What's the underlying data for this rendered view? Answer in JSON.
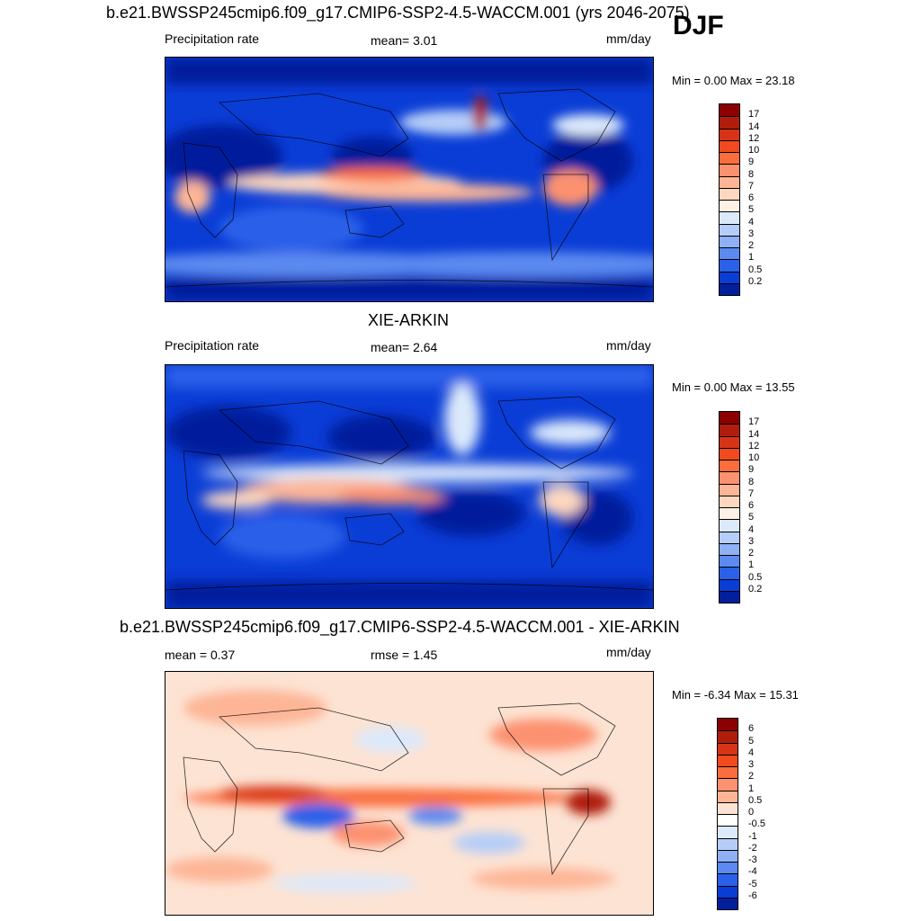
{
  "season": "DJF",
  "panels": [
    {
      "title": "b.e21.BWSSP245cmip6.f09_g17.CMIP6-SSP2-4.5-WACCM.001 (yrs 2046-2075)",
      "left_label": "Precipitation rate",
      "center_label": "mean=   3.01",
      "units": "mm/day",
      "minmax": "Min =   0.00 Max =  23.18",
      "colorbar": {
        "labels": [
          "17",
          "14",
          "12",
          "10",
          "9",
          "8",
          "7",
          "6",
          "5",
          "4",
          "3",
          "2",
          "1",
          "0.5",
          "0.2"
        ],
        "colors": [
          "#8b0000",
          "#b01e0b",
          "#d73417",
          "#f04a1e",
          "#fa6d3c",
          "#fc9170",
          "#fdb596",
          "#fdd7c0",
          "#fef0e6",
          "#dce9fb",
          "#b5cdf8",
          "#8fb0f5",
          "#5b8af0",
          "#2b61e9",
          "#0a3dd6",
          "#021f9c"
        ]
      }
    },
    {
      "title": "XIE-ARKIN",
      "left_label": "Precipitation rate",
      "center_label": "mean=   2.64",
      "units": "mm/day",
      "minmax": "Min =   0.00 Max =  13.55",
      "colorbar": {
        "labels": [
          "17",
          "14",
          "12",
          "10",
          "9",
          "8",
          "7",
          "6",
          "5",
          "4",
          "3",
          "2",
          "1",
          "0.5",
          "0.2"
        ],
        "colors": [
          "#8b0000",
          "#b01e0b",
          "#d73417",
          "#f04a1e",
          "#fa6d3c",
          "#fc9170",
          "#fdb596",
          "#fdd7c0",
          "#fef0e6",
          "#dce9fb",
          "#b5cdf8",
          "#8fb0f5",
          "#5b8af0",
          "#2b61e9",
          "#0a3dd6",
          "#021f9c"
        ]
      }
    },
    {
      "title": "b.e21.BWSSP245cmip6.f09_g17.CMIP6-SSP2-4.5-WACCM.001 - XIE-ARKIN",
      "left_label": "mean =   0.37",
      "center_label": "rmse =   1.45",
      "units": "mm/day",
      "minmax": "Min =  -6.34 Max =  15.31",
      "colorbar": {
        "labels": [
          "6",
          "5",
          "4",
          "3",
          "2",
          "1",
          "0.5",
          "0",
          "-0.5",
          "-1",
          "-2",
          "-3",
          "-4",
          "-5",
          "-6"
        ],
        "colors": [
          "#8b0000",
          "#b01e0b",
          "#d73417",
          "#f04a1e",
          "#fa6d3c",
          "#fc9170",
          "#fdb596",
          "#fde3d3",
          "#ffffff",
          "#dce9fb",
          "#b5cdf8",
          "#8fb0f5",
          "#5b8af0",
          "#2b61e9",
          "#0a3dd6",
          "#021f9c"
        ]
      }
    }
  ]
}
